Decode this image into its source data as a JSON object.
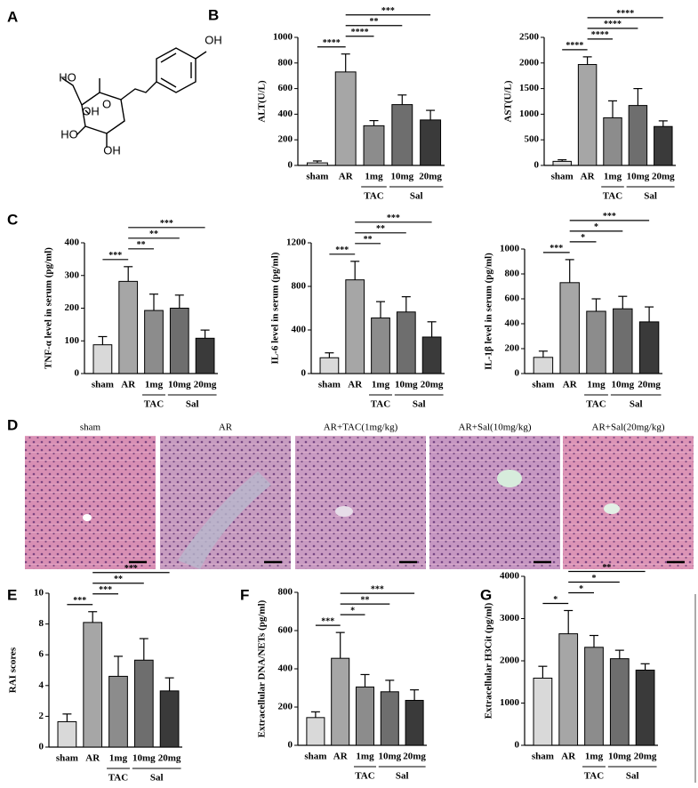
{
  "panel_labels": [
    "A",
    "B",
    "C",
    "D",
    "E",
    "F",
    "G"
  ],
  "structure": {
    "labels": [
      "HO",
      "OH",
      "O",
      "OH",
      "HO",
      "OH"
    ]
  },
  "histology": {
    "captions": [
      "sham",
      "AR",
      "AR+TAC(1mg/kg)",
      "AR+Sal(10mg/kg)",
      "AR+Sal(20mg/kg)"
    ]
  },
  "chart_data": [
    {
      "type": "bar",
      "y_label": "ALT(U/L)",
      "categories": [
        "sham",
        "AR",
        "1mg",
        "10mg",
        "20mg"
      ],
      "values": [
        20,
        730,
        310,
        475,
        355
      ],
      "errors": [
        15,
        140,
        40,
        75,
        75
      ],
      "colors": [
        "#d9d9d9",
        "#a6a6a6",
        "#8c8c8c",
        "#6e6e6e",
        "#3a3a3a"
      ],
      "ylim": [
        0,
        1000
      ],
      "yticks": [
        0,
        200,
        400,
        600,
        800,
        1000
      ],
      "groups": [
        {
          "name": "TAC",
          "categories": [
            "1mg"
          ]
        },
        {
          "name": "Sal",
          "categories": [
            "10mg",
            "20mg"
          ]
        }
      ],
      "significance": [
        {
          "label": "****",
          "compare": [
            "sham",
            "AR"
          ]
        },
        {
          "label": "****",
          "compare": [
            "AR",
            "1mg"
          ]
        },
        {
          "label": "**",
          "compare": [
            "AR",
            "10mg"
          ]
        },
        {
          "label": "***",
          "compare": [
            "AR",
            "20mg"
          ]
        }
      ]
    },
    {
      "type": "bar",
      "y_label": "AST(U/L)",
      "categories": [
        "sham",
        "AR",
        "1mg",
        "10mg",
        "20mg"
      ],
      "values": [
        80,
        1970,
        930,
        1170,
        760
      ],
      "errors": [
        30,
        150,
        330,
        330,
        110
      ],
      "colors": [
        "#d9d9d9",
        "#a6a6a6",
        "#8c8c8c",
        "#6e6e6e",
        "#3a3a3a"
      ],
      "ylim": [
        0,
        2500
      ],
      "yticks": [
        0,
        500,
        1000,
        1500,
        2000,
        2500
      ],
      "groups": [
        {
          "name": "TAC",
          "categories": [
            "1mg"
          ]
        },
        {
          "name": "Sal",
          "categories": [
            "10mg",
            "20mg"
          ]
        }
      ],
      "significance": [
        {
          "label": "****",
          "compare": [
            "sham",
            "AR"
          ]
        },
        {
          "label": "****",
          "compare": [
            "AR",
            "1mg"
          ]
        },
        {
          "label": "****",
          "compare": [
            "AR",
            "10mg"
          ]
        },
        {
          "label": "****",
          "compare": [
            "AR",
            "20mg"
          ]
        }
      ]
    },
    {
      "type": "bar",
      "y_label": "TNF-α level in serum (pg/ml)",
      "categories": [
        "sham",
        "AR",
        "1mg",
        "10mg",
        "20mg"
      ],
      "values": [
        88,
        282,
        193,
        200,
        108
      ],
      "errors": [
        25,
        45,
        50,
        40,
        25
      ],
      "colors": [
        "#d9d9d9",
        "#a6a6a6",
        "#8c8c8c",
        "#6e6e6e",
        "#3a3a3a"
      ],
      "ylim": [
        0,
        400
      ],
      "yticks": [
        0,
        100,
        200,
        300,
        400
      ],
      "groups": [
        {
          "name": "TAC",
          "categories": [
            "1mg"
          ]
        },
        {
          "name": "Sal",
          "categories": [
            "10mg",
            "20mg"
          ]
        }
      ],
      "significance": [
        {
          "label": "***",
          "compare": [
            "sham",
            "AR"
          ]
        },
        {
          "label": "**",
          "compare": [
            "AR",
            "1mg"
          ]
        },
        {
          "label": "**",
          "compare": [
            "AR",
            "10mg"
          ]
        },
        {
          "label": "***",
          "compare": [
            "AR",
            "20mg"
          ]
        }
      ]
    },
    {
      "type": "bar",
      "y_label": "IL-6 level in serum (pg/ml)",
      "categories": [
        "sham",
        "AR",
        "1mg",
        "10mg",
        "20mg"
      ],
      "values": [
        145,
        860,
        510,
        565,
        335
      ],
      "errors": [
        45,
        170,
        150,
        140,
        140
      ],
      "colors": [
        "#d9d9d9",
        "#a6a6a6",
        "#8c8c8c",
        "#6e6e6e",
        "#3a3a3a"
      ],
      "ylim": [
        0,
        1200
      ],
      "yticks": [
        0,
        400,
        800,
        1200
      ],
      "groups": [
        {
          "name": "TAC",
          "categories": [
            "1mg"
          ]
        },
        {
          "name": "Sal",
          "categories": [
            "10mg",
            "20mg"
          ]
        }
      ],
      "significance": [
        {
          "label": "***",
          "compare": [
            "sham",
            "AR"
          ]
        },
        {
          "label": "**",
          "compare": [
            "AR",
            "1mg"
          ]
        },
        {
          "label": "**",
          "compare": [
            "AR",
            "10mg"
          ]
        },
        {
          "label": "***",
          "compare": [
            "AR",
            "20mg"
          ]
        }
      ]
    },
    {
      "type": "bar",
      "y_label": "IL-1β level in serum (pg/ml)",
      "categories": [
        "sham",
        "AR",
        "1mg",
        "10mg",
        "20mg"
      ],
      "values": [
        130,
        730,
        500,
        520,
        415
      ],
      "errors": [
        50,
        185,
        100,
        100,
        120
      ],
      "colors": [
        "#d9d9d9",
        "#a6a6a6",
        "#8c8c8c",
        "#6e6e6e",
        "#3a3a3a"
      ],
      "ylim": [
        0,
        1000
      ],
      "yticks": [
        0,
        200,
        400,
        600,
        800,
        1000
      ],
      "groups": [
        {
          "name": "TAC",
          "categories": [
            "1mg"
          ]
        },
        {
          "name": "Sal",
          "categories": [
            "10mg",
            "20mg"
          ]
        }
      ],
      "significance": [
        {
          "label": "***",
          "compare": [
            "sham",
            "AR"
          ]
        },
        {
          "label": "*",
          "compare": [
            "AR",
            "1mg"
          ]
        },
        {
          "label": "*",
          "compare": [
            "AR",
            "10mg"
          ]
        },
        {
          "label": "***",
          "compare": [
            "AR",
            "20mg"
          ]
        }
      ]
    },
    {
      "type": "bar",
      "y_label": "RAI scores",
      "categories": [
        "sham",
        "AR",
        "1mg",
        "10mg",
        "20mg"
      ],
      "values": [
        1.65,
        8.1,
        4.6,
        5.65,
        3.65
      ],
      "errors": [
        0.5,
        0.7,
        1.3,
        1.4,
        0.85
      ],
      "colors": [
        "#d9d9d9",
        "#a6a6a6",
        "#8c8c8c",
        "#6e6e6e",
        "#3a3a3a"
      ],
      "ylim": [
        0,
        10
      ],
      "yticks": [
        0,
        2,
        4,
        6,
        8,
        10
      ],
      "groups": [
        {
          "name": "TAC",
          "categories": [
            "1mg"
          ]
        },
        {
          "name": "Sal",
          "categories": [
            "10mg",
            "20mg"
          ]
        }
      ],
      "significance": [
        {
          "label": "***",
          "compare": [
            "sham",
            "AR"
          ]
        },
        {
          "label": "***",
          "compare": [
            "AR",
            "1mg"
          ]
        },
        {
          "label": "**",
          "compare": [
            "AR",
            "10mg"
          ]
        },
        {
          "label": "***",
          "compare": [
            "AR",
            "20mg"
          ]
        }
      ]
    },
    {
      "type": "bar",
      "y_label": "Extracellular DNA/NETs (pg/ml)",
      "categories": [
        "sham",
        "AR",
        "1mg",
        "10mg",
        "20mg"
      ],
      "values": [
        145,
        455,
        305,
        280,
        235
      ],
      "errors": [
        30,
        135,
        65,
        60,
        55
      ],
      "colors": [
        "#d9d9d9",
        "#a6a6a6",
        "#8c8c8c",
        "#6e6e6e",
        "#3a3a3a"
      ],
      "ylim": [
        0,
        800
      ],
      "yticks": [
        0,
        200,
        400,
        600,
        800
      ],
      "groups": [
        {
          "name": "TAC",
          "categories": [
            "1mg"
          ]
        },
        {
          "name": "Sal",
          "categories": [
            "10mg",
            "20mg"
          ]
        }
      ],
      "significance": [
        {
          "label": "***",
          "compare": [
            "sham",
            "AR"
          ]
        },
        {
          "label": "*",
          "compare": [
            "AR",
            "1mg"
          ]
        },
        {
          "label": "**",
          "compare": [
            "AR",
            "10mg"
          ]
        },
        {
          "label": "***",
          "compare": [
            "AR",
            "20mg"
          ]
        }
      ]
    },
    {
      "type": "bar",
      "y_label": "Extracellular H3Cit (pg/ml)",
      "categories": [
        "sham",
        "AR",
        "1mg",
        "10mg",
        "20mg"
      ],
      "values": [
        1590,
        2640,
        2320,
        2050,
        1780
      ],
      "errors": [
        280,
        550,
        280,
        200,
        150
      ],
      "colors": [
        "#d9d9d9",
        "#a6a6a6",
        "#8c8c8c",
        "#6e6e6e",
        "#3a3a3a"
      ],
      "ylim": [
        0,
        4000
      ],
      "yticks": [
        0,
        1000,
        2000,
        3000,
        4000
      ],
      "groups": [
        {
          "name": "TAC",
          "categories": [
            "1mg"
          ]
        },
        {
          "name": "Sal",
          "categories": [
            "10mg",
            "20mg"
          ]
        }
      ],
      "significance": [
        {
          "label": "*",
          "compare": [
            "sham",
            "AR"
          ]
        },
        {
          "label": "*",
          "compare": [
            "AR",
            "1mg"
          ]
        },
        {
          "label": "*",
          "compare": [
            "AR",
            "10mg"
          ]
        },
        {
          "label": "**",
          "compare": [
            "AR",
            "20mg"
          ]
        }
      ]
    }
  ]
}
